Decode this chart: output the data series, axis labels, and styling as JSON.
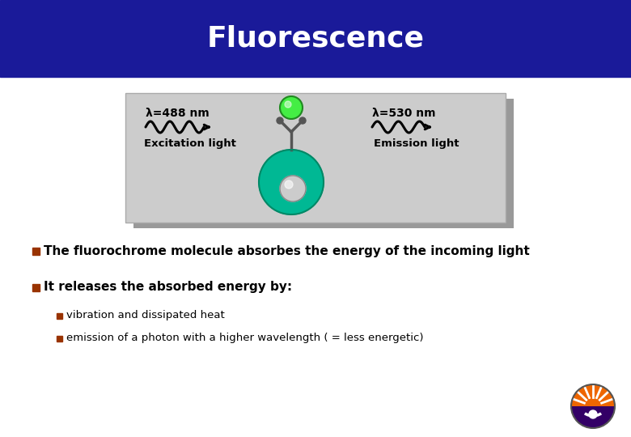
{
  "title": "Fluorescence",
  "title_color": "#ffffff",
  "title_bg_color": "#1a1a99",
  "bg_color": "#ffffff",
  "panel_bg_color": "#cccccc",
  "shadow_color": "#999999",
  "bullet_color": "#993300",
  "text_color": "#000000",
  "bullet1": "The fluorochrome molecule absorbes the energy of the incoming light",
  "bullet2": "It releases the absorbed energy by:",
  "sub_bullet1": "vibration and dissipated heat",
  "sub_bullet2": "emission of a photon with a higher wavelength ( = less energetic)",
  "lambda1_label": "λ=488 nm",
  "lambda2_label": "λ=530 nm",
  "excitation_label": "Excitation light",
  "emission_label": "Emission light",
  "wave_color": "#000000",
  "molecule_body_color": "#00b894",
  "molecule_nucleus_color": "#cccccc",
  "molecule_top_color": "#44ee44",
  "molecule_top_outline": "#228822",
  "molecule_stem_color": "#555555",
  "logo_orange": "#ee6600",
  "logo_purple": "#330066",
  "logo_white": "#ffffff"
}
